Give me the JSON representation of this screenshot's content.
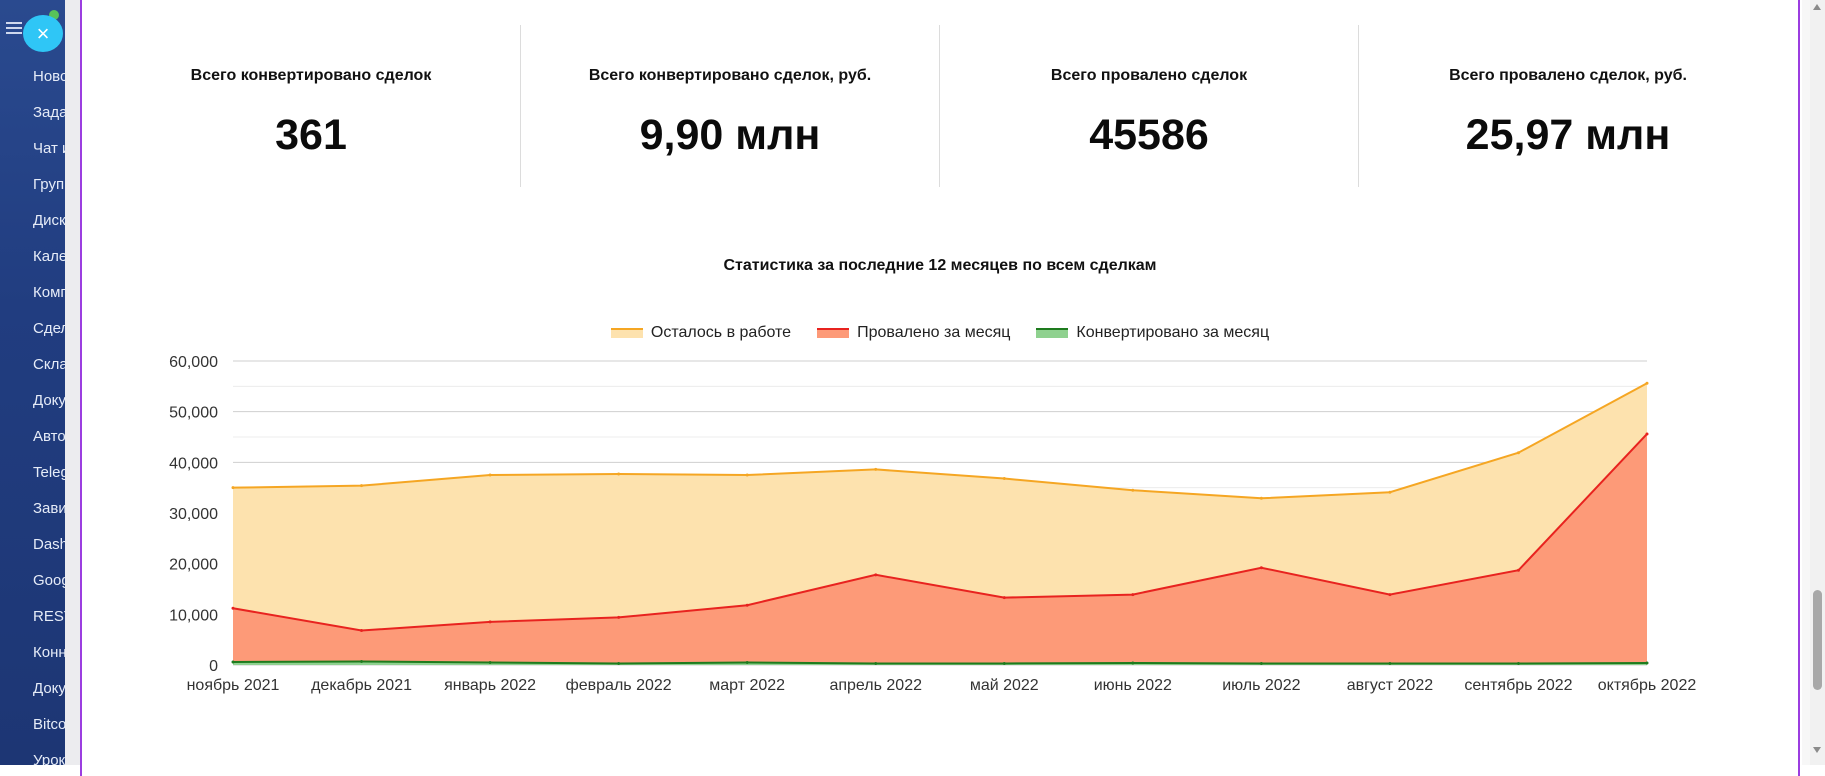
{
  "sidebar": {
    "close_symbol": "×",
    "items": [
      "Ново",
      "Зада",
      "Чат и",
      "Груп",
      "Диск",
      "Кале",
      "Комп",
      "Сдел",
      "Скла",
      "Доку",
      "Авто",
      "Teleg",
      "Зави",
      "Dash",
      "Goog",
      "REST",
      "Конн",
      "Доку",
      "Bitco",
      "Урок"
    ]
  },
  "kpis": [
    {
      "label": "Всего конвертировано сделок",
      "value": "361"
    },
    {
      "label": "Всего конвертировано сделок, руб.",
      "value": "9,90 млн"
    },
    {
      "label": "Всего провалено сделок",
      "value": "45586"
    },
    {
      "label": "Всего провалено сделок, руб.",
      "value": "25,97 млн"
    }
  ],
  "chart_data": {
    "type": "area",
    "title": "Статистика за последние 12 месяцев по всем сделкам",
    "categories": [
      "ноябрь 2021",
      "декабрь 2021",
      "январь 2022",
      "февраль 2022",
      "март 2022",
      "апрель 2022",
      "май 2022",
      "июнь 2022",
      "июль 2022",
      "август 2022",
      "сентябрь 2022",
      "октябрь 2022"
    ],
    "ylim": [
      0,
      60000
    ],
    "yticks": [
      "0",
      "10,000",
      "20,000",
      "30,000",
      "40,000",
      "50,000",
      "60,000"
    ],
    "legend_position": "top",
    "series": [
      {
        "name": "Осталось в работе",
        "color": "#f5a623",
        "fill": "#fde2ae",
        "values": [
          35000,
          35400,
          37500,
          37700,
          37500,
          38600,
          36800,
          34500,
          32900,
          34100,
          41900,
          55600
        ]
      },
      {
        "name": "Провалено за месяц",
        "color": "#e8231f",
        "fill": "#fd9a78",
        "values": [
          11200,
          6800,
          8500,
          9400,
          11800,
          17800,
          13300,
          13900,
          19200,
          13900,
          18700,
          45600
        ]
      },
      {
        "name": "Конвертировано за месяц",
        "color": "#1e7b1e",
        "fill": "#8fd18f",
        "values": [
          600,
          700,
          500,
          300,
          500,
          300,
          300,
          400,
          300,
          300,
          300,
          400
        ]
      }
    ]
  }
}
